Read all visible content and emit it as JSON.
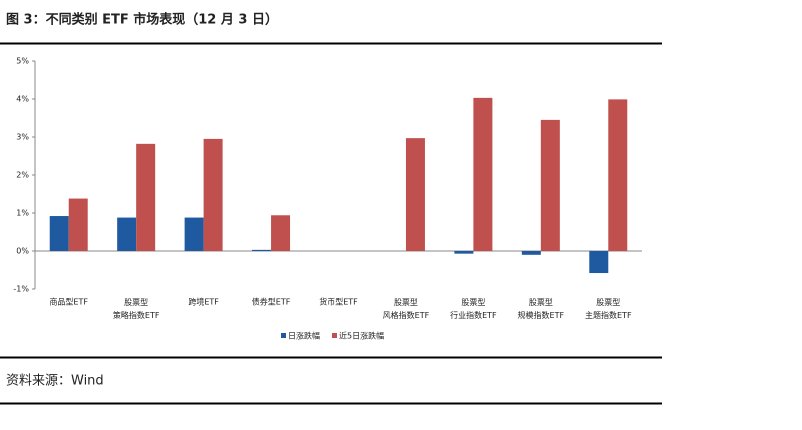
{
  "chart_data": {
    "type": "bar",
    "title": "图 3：不同类别 ETF 市场表现（12 月 3 日）",
    "categories": [
      "商品型ETF",
      "股票型\n策略指数ETF",
      "跨境ETF",
      "债券型ETF",
      "货币型ETF",
      "股票型\n风格指数ETF",
      "股票型\n行业指数ETF",
      "股票型\n规模指数ETF",
      "股票型\n主题指数ETF"
    ],
    "series": [
      {
        "name": "日涨跌幅",
        "color": "#1f5aa0",
        "values": [
          0.92,
          0.88,
          0.88,
          0.03,
          0,
          0,
          -0.07,
          -0.1,
          -0.58
        ]
      },
      {
        "name": "近5日涨跌幅",
        "color": "#c0504d",
        "values": [
          1.38,
          2.82,
          2.95,
          0.94,
          0,
          2.97,
          4.03,
          3.45,
          3.99
        ]
      }
    ],
    "ylim": [
      -1,
      5
    ],
    "yticks": [
      {
        "value": -1,
        "label": "-1%"
      },
      {
        "value": 0,
        "label": "0%"
      },
      {
        "value": 1,
        "label": "1%"
      },
      {
        "value": 2,
        "label": "2%"
      },
      {
        "value": 3,
        "label": "3%"
      },
      {
        "value": 4,
        "label": "4%"
      },
      {
        "value": 5,
        "label": "5%"
      }
    ],
    "grid": false,
    "legend": "bottom",
    "source": "资料来源：Wind"
  }
}
